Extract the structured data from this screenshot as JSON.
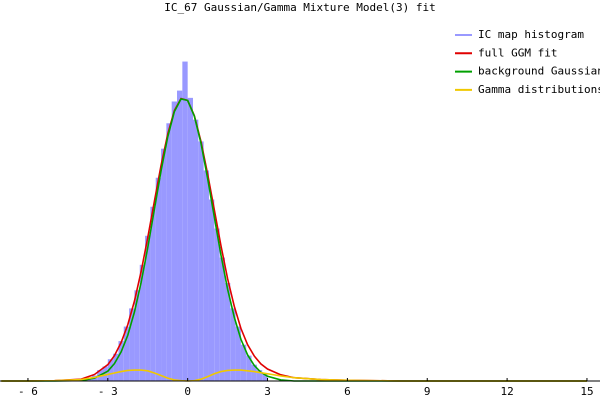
{
  "chart_data": {
    "type": "histogram",
    "title": "IC_67 Gaussian/Gamma Mixture Model(3) fit",
    "xlim": [
      -7.05,
      15.49
    ],
    "ylim": [
      0,
      1
    ],
    "xticks": [
      {
        "value": -6,
        "label": "- 6"
      },
      {
        "value": -3,
        "label": "- 3"
      },
      0,
      3,
      6,
      9,
      12,
      15
    ],
    "legend": "upper right",
    "histogram": {
      "name": "IC map histogram",
      "color": "#9999ff",
      "bins": [
        -4,
        -3.8,
        -3.6,
        -3.4,
        -3.2,
        -3,
        -2.8,
        -2.6,
        -2.4,
        -2.2,
        -2,
        -1.8,
        -1.6,
        -1.4,
        -1.2,
        -1,
        -0.8,
        -0.6,
        -0.4,
        -0.2,
        0,
        0.2,
        0.4,
        0.6,
        0.8,
        1,
        1.2,
        1.4,
        1.6,
        1.8,
        2,
        2.2,
        2.4,
        2.6,
        2.8,
        3
      ],
      "counts": [
        0.003,
        0.008,
        0.015,
        0.03,
        0.04,
        0.06,
        0.075,
        0.11,
        0.15,
        0.2,
        0.25,
        0.32,
        0.4,
        0.48,
        0.56,
        0.64,
        0.71,
        0.77,
        0.8,
        0.88,
        0.78,
        0.72,
        0.66,
        0.58,
        0.5,
        0.42,
        0.34,
        0.27,
        0.2,
        0.15,
        0.1,
        0.07,
        0.045,
        0.03,
        0.02
      ]
    },
    "x": [
      -7,
      -6,
      -5,
      -4,
      -3.5,
      -3,
      -2.75,
      -2.5,
      -2.25,
      -2,
      -1.75,
      -1.5,
      -1.25,
      -1,
      -0.75,
      -0.5,
      -0.25,
      0,
      0.25,
      0.5,
      0.75,
      1,
      1.25,
      1.5,
      1.75,
      2,
      2.25,
      2.5,
      2.75,
      3,
      3.5,
      4,
      5,
      6,
      8,
      10,
      12,
      15
    ],
    "series": [
      {
        "name": "full GGM fit",
        "color": "#e00000",
        "values": [
          0,
          0,
          0.001,
          0.005,
          0.018,
          0.045,
          0.07,
          0.106,
          0.155,
          0.22,
          0.301,
          0.395,
          0.495,
          0.594,
          0.68,
          0.745,
          0.778,
          0.773,
          0.731,
          0.66,
          0.57,
          0.472,
          0.373,
          0.282,
          0.206,
          0.145,
          0.1,
          0.069,
          0.047,
          0.033,
          0.017,
          0.009,
          0.004,
          0.002,
          0,
          0,
          0,
          0
        ]
      },
      {
        "name": "background Gaussian",
        "color": "#00a000",
        "values": [
          0,
          0,
          0,
          0.001,
          0.008,
          0.027,
          0.048,
          0.08,
          0.126,
          0.19,
          0.271,
          0.367,
          0.473,
          0.579,
          0.672,
          0.742,
          0.777,
          0.773,
          0.73,
          0.655,
          0.558,
          0.452,
          0.347,
          0.253,
          0.176,
          0.115,
          0.072,
          0.043,
          0.024,
          0.013,
          0.003,
          0,
          0,
          0,
          0,
          0,
          0,
          0
        ]
      },
      {
        "name": "Gamma distributions",
        "color": "#f0c800",
        "values": [
          0,
          0,
          0.001,
          0.004,
          0.01,
          0.018,
          0.022,
          0.026,
          0.029,
          0.03,
          0.03,
          0.028,
          0.022,
          0.015,
          0.008,
          0.003,
          0.001,
          0,
          0.001,
          0.005,
          0.012,
          0.02,
          0.026,
          0.029,
          0.03,
          0.03,
          0.028,
          0.026,
          0.023,
          0.02,
          0.014,
          0.009,
          0.004,
          0.002,
          0,
          0,
          0,
          0
        ]
      }
    ]
  }
}
